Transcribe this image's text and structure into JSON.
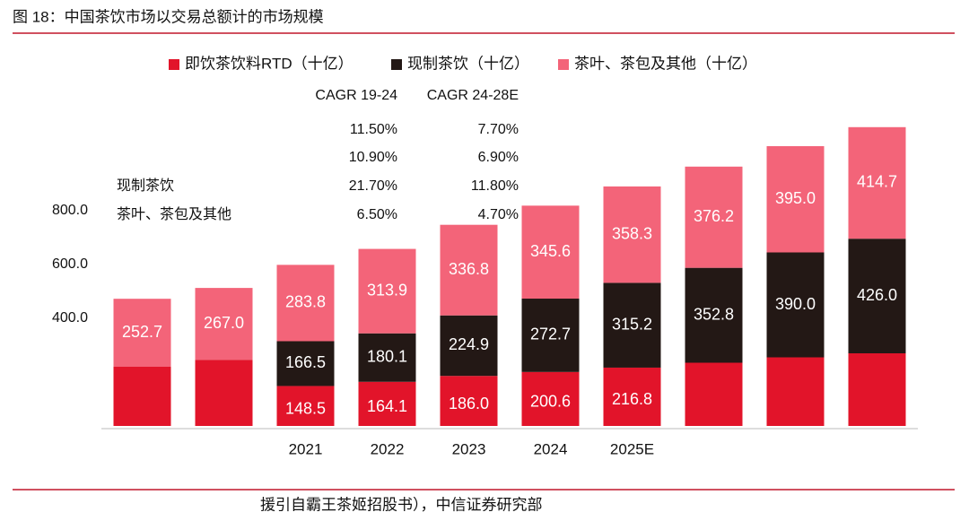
{
  "chart_data": {
    "type": "bar",
    "stacked": true,
    "title": "图 18：中国茶饮市场以交易总额计的市场规模",
    "source": "援引自霸王茶姬招股书），中信证券研究部",
    "categories": [
      null,
      null,
      "2021",
      "2022",
      "2023",
      "2024",
      "2025E",
      null,
      null,
      null
    ],
    "series": [
      {
        "name": "即饮茶饮料RTD（十亿）",
        "color": "#e2142a",
        "values": [
          220,
          246,
          148.5,
          164.1,
          186.0,
          200.6,
          216.8,
          235,
          255,
          270
        ],
        "value_labels": [
          null,
          null,
          "148.5",
          "164.1",
          "186.0",
          "200.6",
          "216.8",
          null,
          null,
          null
        ]
      },
      {
        "name": "现制茶饮（十亿）",
        "color": "#231815",
        "values": [
          null,
          null,
          166.5,
          180.1,
          224.9,
          272.7,
          315.2,
          352.8,
          390.0,
          426.0
        ],
        "value_labels": [
          null,
          null,
          "166.5",
          "180.1",
          "224.9",
          "272.7",
          "315.2",
          "352.8",
          "390.0",
          "426.0"
        ]
      },
      {
        "name": "茶叶、茶包及其他（十亿）",
        "color": "#f36479",
        "values": [
          252.7,
          267.0,
          283.8,
          313.9,
          336.8,
          345.6,
          358.3,
          376.2,
          395.0,
          414.7
        ],
        "value_labels": [
          "252.7",
          "267.0",
          "283.8",
          "313.9",
          "336.8",
          "345.6",
          "358.3",
          "376.2",
          "395.0",
          "414.7"
        ]
      }
    ],
    "ylim": [
      0,
      1150
    ],
    "yticks": [
      {
        "value": 400,
        "label": "400.0"
      },
      {
        "value": 600,
        "label": "600.0"
      },
      {
        "value": 800,
        "label": "800.0"
      }
    ],
    "grid": false,
    "legend": "top"
  },
  "cagr_table": {
    "headers": [
      "CAGR 19-24",
      "CAGR 24-28E"
    ],
    "rows": [
      {
        "label": null,
        "values": [
          "11.50%",
          "7.70%"
        ]
      },
      {
        "label": null,
        "values": [
          "10.90%",
          "6.90%"
        ]
      },
      {
        "label": "现制茶饮",
        "values": [
          "21.70%",
          "11.80%"
        ]
      },
      {
        "label": "茶叶、茶包及其他",
        "values": [
          "6.50%",
          "4.70%"
        ]
      }
    ]
  }
}
